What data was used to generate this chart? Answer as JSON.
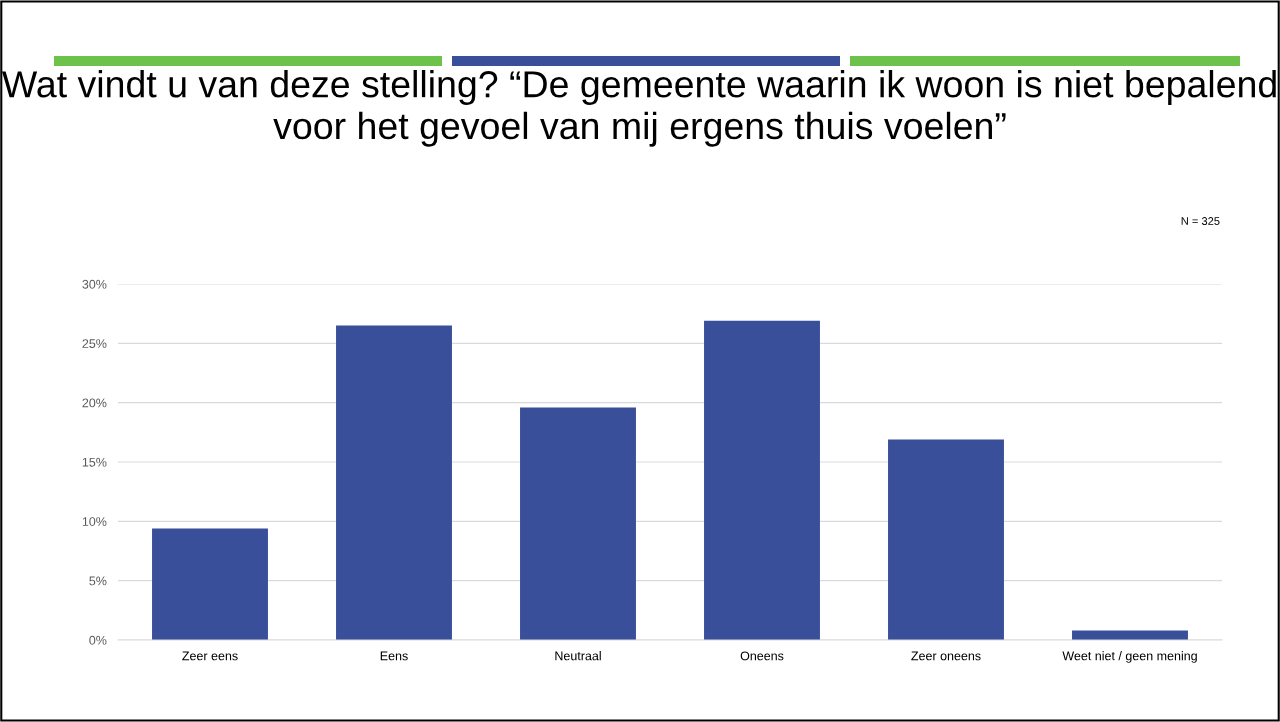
{
  "chart_data": {
    "type": "bar",
    "title": "Wat vindt u van deze stelling? “De gemeente waarin ik woon is niet bepalend voor het gevoel van mij ergens thuis voelen”",
    "annotations": [
      "N = 325"
    ],
    "categories": [
      "Zeer eens",
      "Eens",
      "Neutraal",
      "Oneens",
      "Zeer oneens",
      "Weet niet / geen mening"
    ],
    "values": [
      9.4,
      26.5,
      19.6,
      26.9,
      16.9,
      0.8
    ],
    "color": "#3a4f9a",
    "ylim": [
      0,
      30
    ],
    "yticks": [
      {
        "value": 0,
        "label": "0%"
      },
      {
        "value": 5,
        "label": "5%"
      },
      {
        "value": 10,
        "label": "10%"
      },
      {
        "value": 15,
        "label": "15%"
      },
      {
        "value": 20,
        "label": "20%"
      },
      {
        "value": 25,
        "label": "25%"
      },
      {
        "value": 30,
        "label": "30%"
      }
    ],
    "grid": "y"
  }
}
